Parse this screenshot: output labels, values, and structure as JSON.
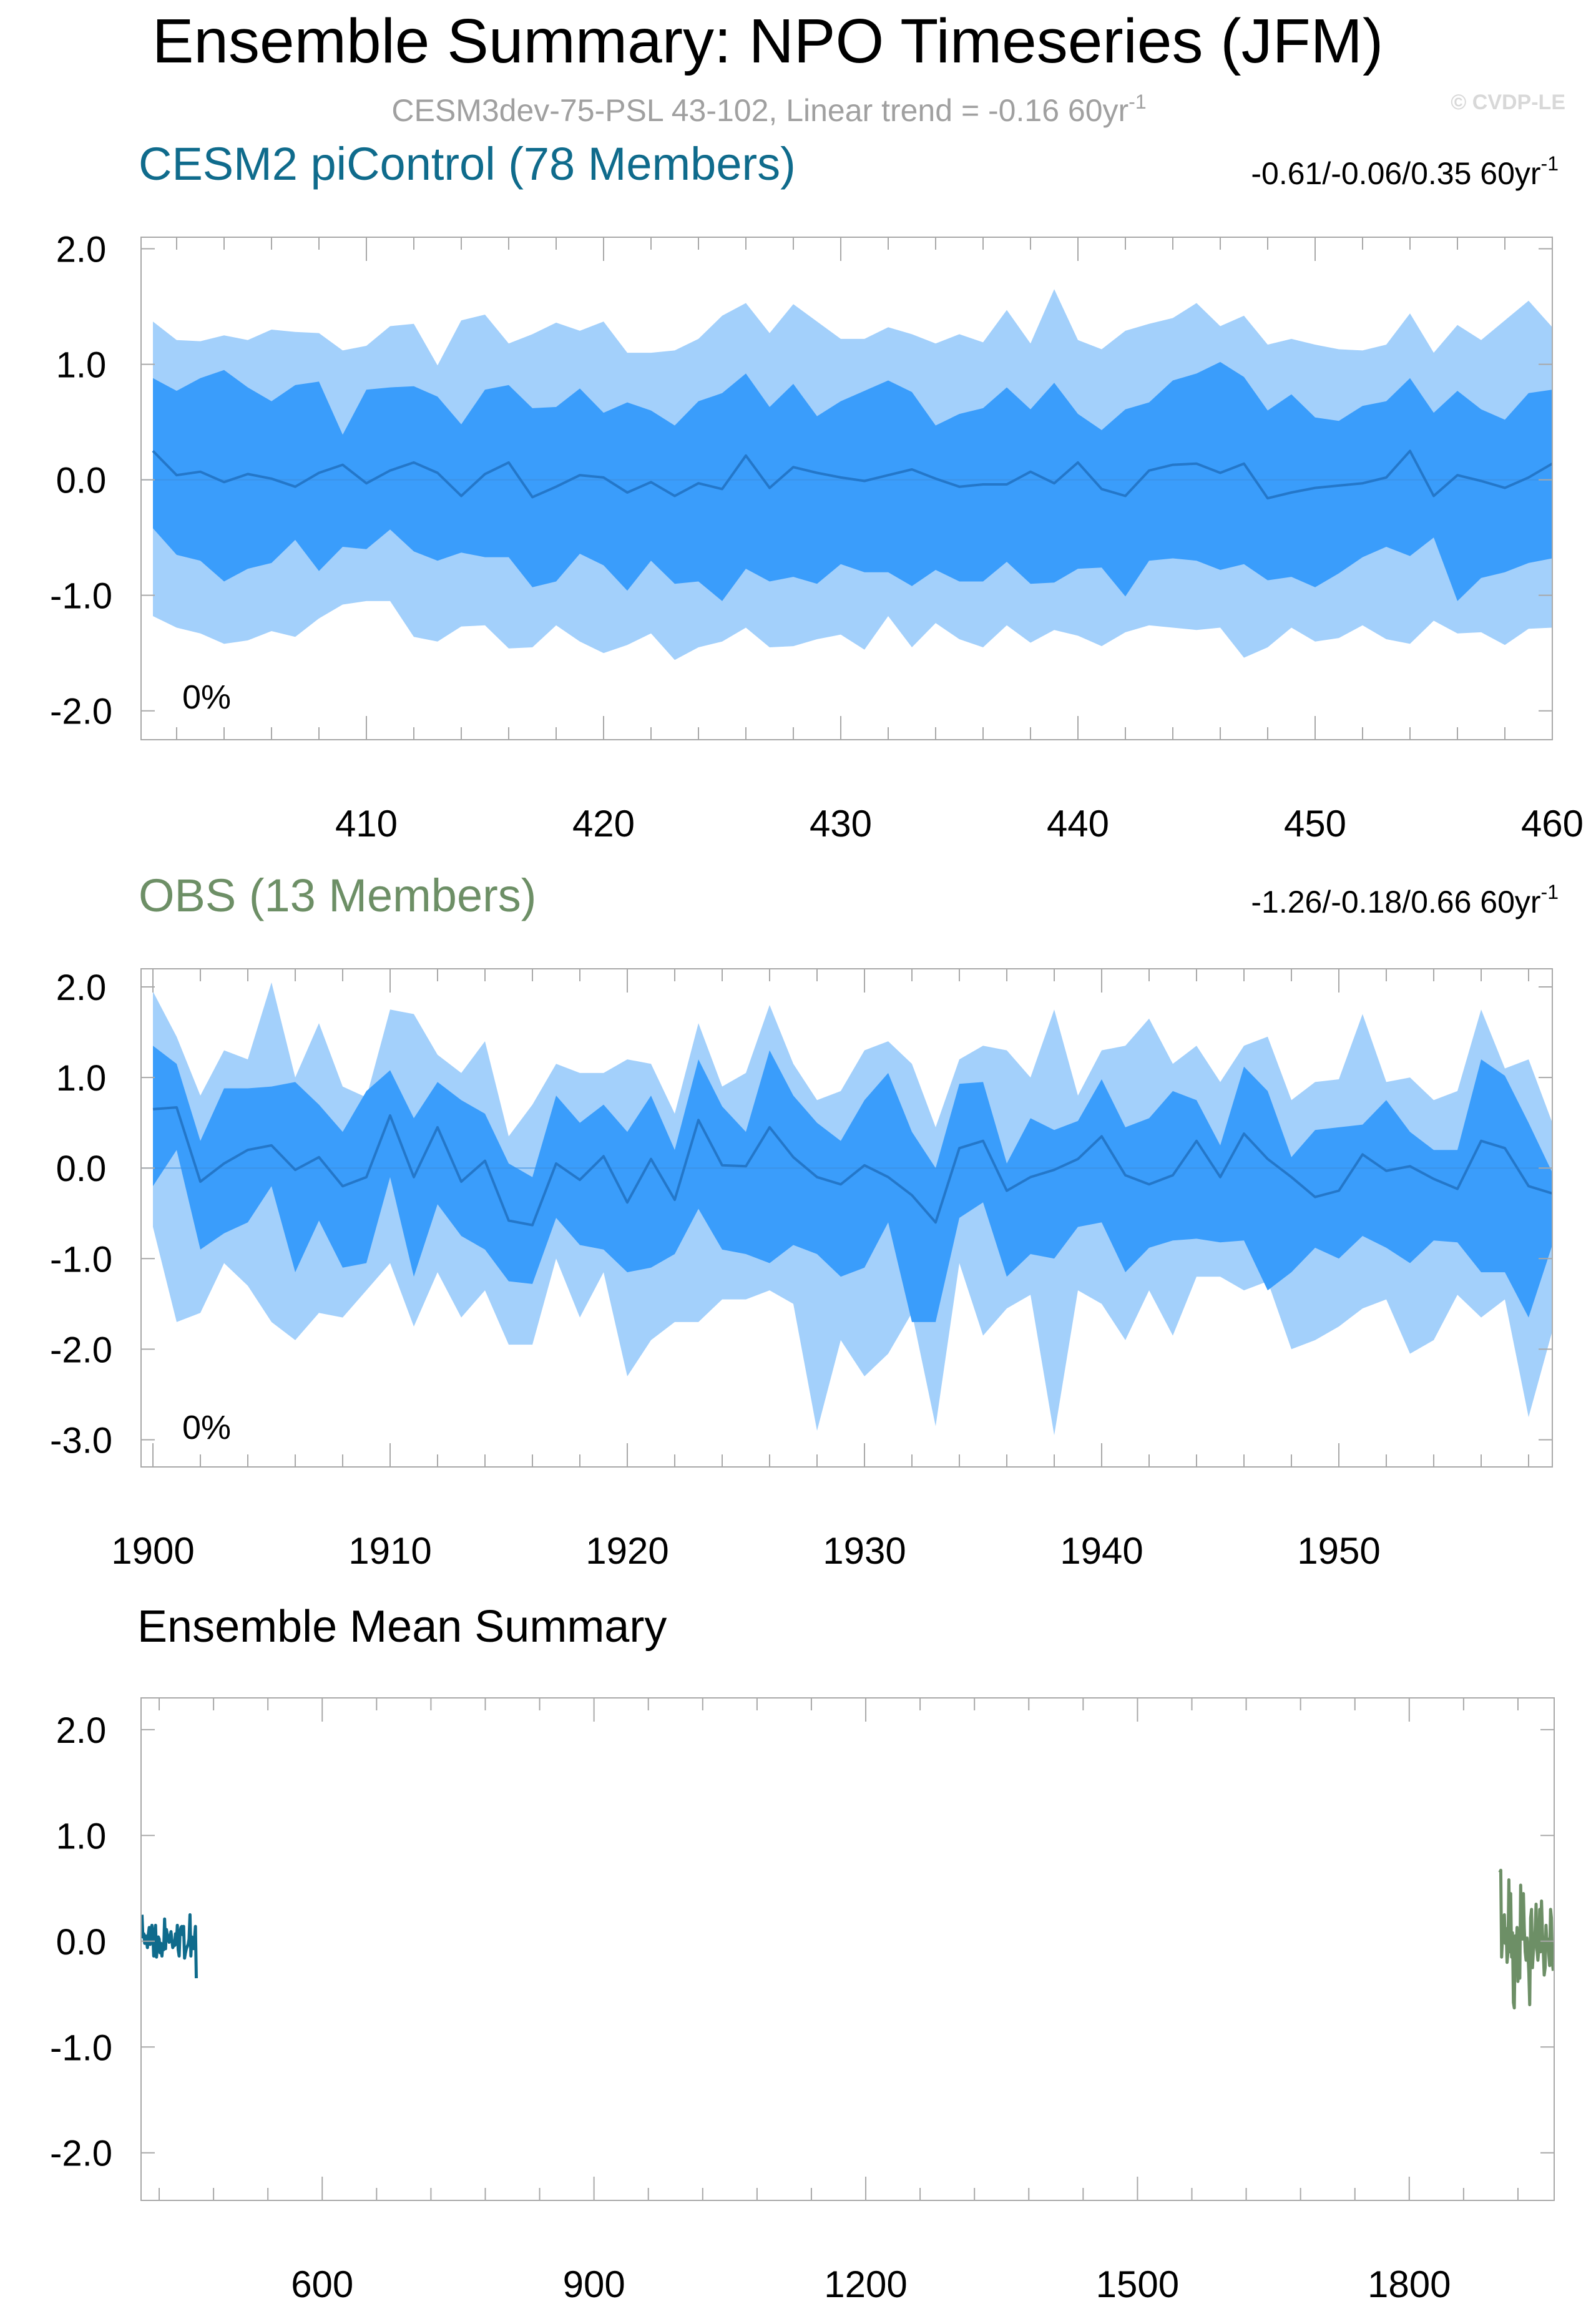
{
  "figure": {
    "title": "Ensemble Summary: NPO Timeseries (JFM)",
    "subtitle": "CESM3dev-75-PSL 43-102, Linear trend = -0.16 60yr",
    "subtitle_sup": "-1",
    "watermark": "© CVDP-LE"
  },
  "colors": {
    "band_outer": "#a3d0fb",
    "band_inner": "#3a9dfb",
    "mean_line": "#2477c9",
    "cesm_title": "#0f6b8c",
    "obs_title": "#6d8f66",
    "watermark": "#d8d8d8",
    "subtitle": "#a0a0a0"
  },
  "chart_data": [
    {
      "id": "cesm2",
      "type": "area",
      "title": "CESM2 piControl (78 Members)",
      "trend_text": "-0.61/-0.06/0.35 60yr",
      "trend_sup": "-1",
      "percent_label": "0%",
      "xlim": [
        400.5,
        460
      ],
      "ylim": [
        -2.25,
        2.1
      ],
      "xticks": [
        410,
        420,
        430,
        440,
        450,
        460
      ],
      "xtick_labels": [
        "410",
        "420",
        "430",
        "440",
        "450",
        "460"
      ],
      "yticks": [
        2,
        1,
        0,
        -1,
        -2
      ],
      "ytick_labels": [
        "2.0",
        "1.0",
        "0.0",
        "-1.0",
        "-2.0"
      ],
      "x_start": 401,
      "mean": [
        0.25,
        0.04,
        0.07,
        -0.02,
        0.05,
        0.01,
        -0.06,
        0.06,
        0.13,
        -0.03,
        0.08,
        0.15,
        0.06,
        -0.14,
        0.05,
        0.15,
        -0.15,
        -0.06,
        0.04,
        0.02,
        -0.11,
        -0.02,
        -0.14,
        -0.03,
        -0.08,
        0.21,
        -0.07,
        0.11,
        0.06,
        0.02,
        -0.01,
        0.04,
        0.09,
        0.01,
        -0.06,
        -0.04,
        -0.04,
        0.07,
        -0.03,
        0.15,
        -0.08,
        -0.14,
        0.08,
        0.13,
        0.14,
        0.06,
        0.14,
        -0.16,
        -0.11,
        -0.07,
        -0.05,
        -0.03,
        0.02,
        0.25,
        -0.14,
        0.04,
        -0.01,
        -0.07,
        0.02,
        0.14,
        -0.35
      ],
      "inner_upper": [
        0.88,
        0.77,
        0.88,
        0.95,
        0.8,
        0.68,
        0.82,
        0.85,
        0.39,
        0.78,
        0.8,
        0.81,
        0.72,
        0.48,
        0.78,
        0.82,
        0.62,
        0.63,
        0.79,
        0.58,
        0.67,
        0.6,
        0.47,
        0.68,
        0.75,
        0.92,
        0.63,
        0.83,
        0.55,
        0.68,
        0.77,
        0.86,
        0.76,
        0.47,
        0.57,
        0.62,
        0.8,
        0.61,
        0.84,
        0.57,
        0.43,
        0.61,
        0.67,
        0.86,
        0.92,
        1.02,
        0.89,
        0.6,
        0.74,
        0.54,
        0.51,
        0.64,
        0.68,
        0.88,
        0.58,
        0.77,
        0.61,
        0.52,
        0.75,
        0.78,
        0.48
      ],
      "inner_lower": [
        -0.42,
        -0.65,
        -0.7,
        -0.88,
        -0.77,
        -0.72,
        -0.52,
        -0.79,
        -0.58,
        -0.6,
        -0.43,
        -0.62,
        -0.7,
        -0.63,
        -0.67,
        -0.67,
        -0.93,
        -0.88,
        -0.64,
        -0.74,
        -0.96,
        -0.7,
        -0.9,
        -0.88,
        -1.05,
        -0.77,
        -0.88,
        -0.84,
        -0.9,
        -0.73,
        -0.8,
        -0.8,
        -0.92,
        -0.78,
        -0.88,
        -0.88,
        -0.71,
        -0.9,
        -0.89,
        -0.77,
        -0.76,
        -1.01,
        -0.7,
        -0.68,
        -0.7,
        -0.78,
        -0.73,
        -0.87,
        -0.84,
        -0.93,
        -0.81,
        -0.67,
        -0.58,
        -0.66,
        -0.5,
        -1.05,
        -0.85,
        -0.8,
        -0.72,
        -0.68,
        -1.05
      ],
      "outer_upper": [
        1.37,
        1.21,
        1.2,
        1.25,
        1.21,
        1.3,
        1.28,
        1.27,
        1.12,
        1.16,
        1.33,
        1.35,
        0.99,
        1.38,
        1.43,
        1.18,
        1.26,
        1.36,
        1.29,
        1.37,
        1.1,
        1.1,
        1.12,
        1.22,
        1.42,
        1.53,
        1.27,
        1.52,
        1.37,
        1.22,
        1.22,
        1.32,
        1.26,
        1.18,
        1.26,
        1.19,
        1.47,
        1.18,
        1.65,
        1.21,
        1.13,
        1.29,
        1.35,
        1.4,
        1.53,
        1.33,
        1.42,
        1.17,
        1.22,
        1.17,
        1.13,
        1.12,
        1.17,
        1.44,
        1.1,
        1.34,
        1.21,
        1.38,
        1.55,
        1.32,
        1.07
      ],
      "outer_lower": [
        -1.18,
        -1.28,
        -1.33,
        -1.42,
        -1.39,
        -1.31,
        -1.36,
        -1.2,
        -1.08,
        -1.05,
        -1.05,
        -1.36,
        -1.4,
        -1.27,
        -1.26,
        -1.46,
        -1.45,
        -1.26,
        -1.4,
        -1.5,
        -1.43,
        -1.33,
        -1.56,
        -1.45,
        -1.4,
        -1.28,
        -1.45,
        -1.44,
        -1.38,
        -1.34,
        -1.47,
        -1.18,
        -1.45,
        -1.24,
        -1.38,
        -1.45,
        -1.26,
        -1.41,
        -1.3,
        -1.35,
        -1.44,
        -1.32,
        -1.26,
        -1.28,
        -1.3,
        -1.28,
        -1.54,
        -1.45,
        -1.28,
        -1.4,
        -1.37,
        -1.26,
        -1.38,
        -1.42,
        -1.22,
        -1.33,
        -1.32,
        -1.43,
        -1.29,
        -1.28,
        -1.62
      ]
    },
    {
      "id": "obs",
      "type": "area",
      "title": "OBS (13 Members)",
      "trend_text": "-1.26/-0.18/0.66 60yr",
      "trend_sup": "-1",
      "percent_label": "0%",
      "xlim": [
        1899.5,
        1959
      ],
      "ylim": [
        -3.3,
        2.2
      ],
      "xticks": [
        1900,
        1910,
        1920,
        1930,
        1940,
        1950
      ],
      "xtick_labels": [
        "1900",
        "1910",
        "1920",
        "1930",
        "1940",
        "1950"
      ],
      "yticks": [
        2,
        1,
        0,
        -1,
        -2,
        -3
      ],
      "ytick_labels": [
        "2.0",
        "1.0",
        "0.0",
        "-1.0",
        "-2.0",
        "-3.0"
      ],
      "x_start": 1900,
      "mean": [
        0.65,
        0.67,
        -0.15,
        0.05,
        0.2,
        0.25,
        -0.02,
        0.12,
        -0.2,
        -0.1,
        0.58,
        -0.1,
        0.45,
        -0.15,
        0.08,
        -0.58,
        -0.63,
        0.05,
        -0.13,
        0.13,
        -0.38,
        0.1,
        -0.35,
        0.53,
        0.03,
        0.02,
        0.45,
        0.12,
        -0.1,
        -0.18,
        0.03,
        -0.1,
        -0.3,
        -0.6,
        0.22,
        0.3,
        -0.25,
        -0.1,
        -0.02,
        0.1,
        0.35,
        -0.08,
        -0.18,
        -0.08,
        0.3,
        -0.1,
        0.38,
        0.1,
        -0.1,
        -0.32,
        -0.25,
        0.15,
        -0.03,
        0.02,
        -0.12,
        -0.23,
        0.3,
        0.22,
        -0.2,
        -0.28
      ],
      "inner_upper": [
        1.35,
        1.15,
        0.3,
        0.88,
        0.88,
        0.9,
        0.95,
        0.7,
        0.4,
        0.85,
        1.08,
        0.55,
        0.95,
        0.75,
        0.6,
        0.05,
        -0.1,
        0.8,
        0.5,
        0.7,
        0.4,
        0.8,
        0.2,
        1.2,
        0.68,
        0.4,
        1.3,
        0.8,
        0.5,
        0.3,
        0.75,
        1.05,
        0.4,
        0.0,
        0.93,
        0.95,
        0.05,
        0.55,
        0.42,
        0.52,
        0.98,
        0.45,
        0.55,
        0.85,
        0.75,
        0.25,
        1.12,
        0.85,
        0.12,
        0.42,
        0.45,
        0.48,
        0.75,
        0.4,
        0.2,
        0.2,
        1.2,
        1.02,
        0.5,
        -0.05
      ],
      "inner_lower": [
        -0.2,
        0.2,
        -0.9,
        -0.72,
        -0.6,
        -0.2,
        -1.15,
        -0.58,
        -1.1,
        -1.05,
        -0.1,
        -1.2,
        -0.4,
        -0.75,
        -0.9,
        -1.25,
        -1.28,
        -0.55,
        -0.85,
        -0.9,
        -1.15,
        -1.1,
        -0.95,
        -0.45,
        -0.9,
        -0.95,
        -1.05,
        -0.85,
        -0.95,
        -1.2,
        -1.1,
        -0.6,
        -1.7,
        -1.7,
        -0.55,
        -0.38,
        -1.2,
        -0.95,
        -1.0,
        -0.65,
        -0.6,
        -1.15,
        -0.88,
        -0.8,
        -0.78,
        -0.82,
        -0.8,
        -1.35,
        -1.15,
        -0.88,
        -1.0,
        -0.75,
        -0.88,
        -1.05,
        -0.8,
        -0.82,
        -1.15,
        -1.15,
        -1.65,
        -0.85
      ],
      "outer_upper": [
        1.95,
        1.45,
        0.8,
        1.3,
        1.2,
        2.05,
        1.0,
        1.6,
        0.9,
        0.78,
        1.75,
        1.7,
        1.25,
        1.05,
        1.4,
        0.35,
        0.7,
        1.15,
        1.05,
        1.05,
        1.2,
        1.15,
        0.6,
        1.6,
        0.9,
        1.05,
        1.8,
        1.15,
        0.75,
        0.85,
        1.3,
        1.4,
        1.15,
        0.45,
        1.2,
        1.35,
        1.3,
        1.0,
        1.75,
        0.8,
        1.3,
        1.35,
        1.65,
        1.15,
        1.35,
        0.95,
        1.35,
        1.45,
        0.75,
        0.95,
        0.98,
        1.7,
        0.95,
        1.0,
        0.75,
        0.85,
        1.75,
        1.1,
        1.2,
        0.5
      ],
      "outer_lower": [
        -0.65,
        -1.7,
        -1.6,
        -1.05,
        -1.3,
        -1.7,
        -1.9,
        -1.6,
        -1.65,
        -1.35,
        -1.05,
        -1.75,
        -1.15,
        -1.65,
        -1.35,
        -1.95,
        -1.95,
        -1.0,
        -1.65,
        -1.15,
        -2.3,
        -1.9,
        -1.7,
        -1.7,
        -1.45,
        -1.45,
        -1.35,
        -1.5,
        -2.9,
        -1.9,
        -2.3,
        -2.05,
        -1.6,
        -2.85,
        -1.05,
        -1.85,
        -1.55,
        -1.4,
        -2.95,
        -1.35,
        -1.5,
        -1.9,
        -1.35,
        -1.85,
        -1.2,
        -1.2,
        -1.35,
        -1.25,
        -2.0,
        -1.9,
        -1.75,
        -1.55,
        -1.45,
        -2.05,
        -1.9,
        -1.4,
        -1.65,
        -1.45,
        -2.75,
        -1.8
      ]
    },
    {
      "id": "ensemble-mean",
      "type": "line",
      "title": "Ensemble Mean Summary",
      "xlim": [
        400,
        1960
      ],
      "ylim": [
        -2.45,
        2.3
      ],
      "xticks": [
        600,
        900,
        1200,
        1500,
        1800
      ],
      "xtick_labels": [
        "600",
        "900",
        "1200",
        "1500",
        "1800"
      ],
      "yticks": [
        2,
        1,
        0,
        -1,
        -2
      ],
      "ytick_labels": [
        "2.0",
        "1.0",
        "0.0",
        "-1.0",
        "-2.0"
      ],
      "series": [
        {
          "ref": "cesm2",
          "color": "#0f6b8c",
          "x_start": 401,
          "values": [
            0.25,
            0.04,
            0.07,
            -0.02,
            0.05,
            0.01,
            -0.06,
            0.06,
            0.13,
            -0.03,
            0.08,
            0.15,
            0.06,
            -0.14,
            0.05,
            0.15,
            -0.15,
            -0.06,
            0.04,
            0.02,
            -0.11,
            -0.02,
            -0.14,
            -0.03,
            -0.08,
            0.21,
            -0.07,
            0.11,
            0.06,
            0.02,
            -0.01,
            0.04,
            0.09,
            0.01,
            -0.06,
            -0.04,
            -0.04,
            0.07,
            -0.03,
            0.15,
            -0.08,
            -0.14,
            0.08,
            0.13,
            0.14,
            0.06,
            0.14,
            -0.16,
            -0.11,
            -0.07,
            -0.05,
            -0.03,
            0.02,
            0.25,
            -0.14,
            0.04,
            -0.01,
            -0.07,
            0.02,
            0.14,
            -0.35
          ]
        },
        {
          "ref": "obs",
          "color": "#6d8f66",
          "x_start": 1900,
          "values": [
            0.65,
            0.67,
            -0.15,
            0.05,
            0.2,
            0.25,
            -0.02,
            0.12,
            -0.2,
            -0.1,
            0.58,
            -0.1,
            0.45,
            -0.15,
            0.08,
            -0.58,
            -0.63,
            0.05,
            -0.13,
            0.13,
            -0.38,
            0.1,
            -0.35,
            0.53,
            0.03,
            0.02,
            0.45,
            0.12,
            -0.1,
            -0.18,
            0.03,
            -0.1,
            -0.3,
            -0.6,
            0.22,
            0.3,
            -0.25,
            -0.1,
            -0.02,
            0.1,
            0.35,
            -0.08,
            -0.18,
            -0.08,
            0.3,
            -0.1,
            0.38,
            0.1,
            -0.1,
            -0.32,
            -0.25,
            0.15,
            -0.03,
            0.02,
            -0.12,
            -0.23,
            0.3,
            0.22,
            -0.2,
            -0.28
          ]
        }
      ]
    }
  ]
}
